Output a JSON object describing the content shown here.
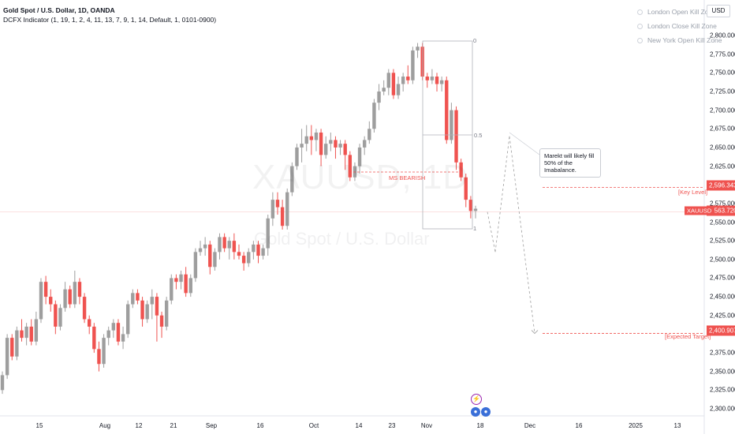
{
  "header": {
    "title": "Gold Spot / U.S. Dollar, 1D, OANDA",
    "indicator": "DCFX Indicator (1, 19, 1, 2, 4, 11, 13, 7, 9, 1, 14, Default, 1, 0101-0900)"
  },
  "currency_button": "USD",
  "kill_zones": [
    "London Open Kill Zone",
    "London Close Kill Zone",
    "New York Open Kill Zone"
  ],
  "watermark": {
    "symbol": "XAUUSD, 1D",
    "name": "Gold Spot / U.S. Dollar"
  },
  "annotations": {
    "note": "Marekt will likely fill 50% of the Imabalance.",
    "ms_bearish": "MS BEARISH",
    "key_level": "[Key Level]",
    "expected_target": "[Expected Target]",
    "fib_0": "0",
    "fib_05": "0.5",
    "fib_1": "1"
  },
  "price_tags": {
    "key_level": "2,596.343",
    "current": "2,563.720",
    "target": "2,400.907",
    "symbol": "XAUUSD"
  },
  "colors": {
    "up": "#9e9e9e",
    "down": "#ef5350",
    "accent": "#ef5350"
  },
  "chart_data": {
    "type": "candlestick",
    "y_ticks": [
      "2,800.000",
      "2,775.000",
      "2,750.000",
      "2,725.000",
      "2,700.000",
      "2,675.000",
      "2,650.000",
      "2,625.000",
      "2,600.000",
      "2,575.000",
      "2,550.000",
      "2,525.000",
      "2,500.000",
      "2,475.000",
      "2,450.000",
      "2,425.000",
      "2,375.000",
      "2,350.000",
      "2,325.000",
      "2,300.000"
    ],
    "x_ticks": [
      "15",
      "Aug",
      "12",
      "21",
      "Sep",
      "16",
      "Oct",
      "14",
      "23",
      "Nov",
      "18",
      "Dec",
      "16",
      "2025",
      "13"
    ],
    "ylim": [
      2290,
      2820
    ],
    "key_level": 2596.343,
    "current_price": 2563.72,
    "expected_target": 2400.907,
    "projection": [
      [
        2563.72,
        2510
      ],
      [
        2510,
        2665
      ],
      [
        2665,
        2400.907
      ]
    ],
    "candles": [
      [
        2325,
        2345,
        2320,
        2350
      ],
      [
        2345,
        2395,
        2340,
        2400
      ],
      [
        2395,
        2370,
        2365,
        2400
      ],
      [
        2370,
        2405,
        2365,
        2410
      ],
      [
        2405,
        2395,
        2390,
        2420
      ],
      [
        2395,
        2410,
        2385,
        2415
      ],
      [
        2410,
        2390,
        2385,
        2420
      ],
      [
        2390,
        2420,
        2385,
        2430
      ],
      [
        2420,
        2470,
        2415,
        2475
      ],
      [
        2470,
        2450,
        2440,
        2478
      ],
      [
        2450,
        2440,
        2430,
        2460
      ],
      [
        2440,
        2410,
        2400,
        2445
      ],
      [
        2410,
        2435,
        2405,
        2440
      ],
      [
        2435,
        2460,
        2430,
        2470
      ],
      [
        2460,
        2440,
        2435,
        2465
      ],
      [
        2440,
        2470,
        2435,
        2485
      ],
      [
        2470,
        2450,
        2440,
        2475
      ],
      [
        2450,
        2420,
        2415,
        2455
      ],
      [
        2420,
        2410,
        2400,
        2425
      ],
      [
        2410,
        2380,
        2375,
        2415
      ],
      [
        2380,
        2360,
        2350,
        2390
      ],
      [
        2360,
        2395,
        2355,
        2400
      ],
      [
        2395,
        2405,
        2385,
        2410
      ],
      [
        2405,
        2415,
        2395,
        2420
      ],
      [
        2415,
        2390,
        2385,
        2420
      ],
      [
        2390,
        2400,
        2380,
        2410
      ],
      [
        2400,
        2440,
        2395,
        2445
      ],
      [
        2440,
        2455,
        2435,
        2460
      ],
      [
        2455,
        2445,
        2440,
        2460
      ],
      [
        2445,
        2420,
        2410,
        2450
      ],
      [
        2420,
        2440,
        2415,
        2445
      ],
      [
        2440,
        2450,
        2420,
        2460
      ],
      [
        2450,
        2425,
        2390,
        2455
      ],
      [
        2425,
        2410,
        2395,
        2430
      ],
      [
        2410,
        2445,
        2405,
        2450
      ],
      [
        2445,
        2475,
        2440,
        2480
      ],
      [
        2475,
        2470,
        2460,
        2480
      ],
      [
        2470,
        2480,
        2460,
        2485
      ],
      [
        2480,
        2455,
        2450,
        2490
      ],
      [
        2455,
        2475,
        2450,
        2480
      ],
      [
        2475,
        2510,
        2470,
        2515
      ],
      [
        2510,
        2515,
        2505,
        2525
      ],
      [
        2515,
        2520,
        2505,
        2530
      ],
      [
        2520,
        2490,
        2480,
        2525
      ],
      [
        2490,
        2510,
        2485,
        2515
      ],
      [
        2510,
        2530,
        2500,
        2535
      ],
      [
        2530,
        2515,
        2510,
        2535
      ],
      [
        2515,
        2525,
        2500,
        2530
      ],
      [
        2525,
        2510,
        2500,
        2535
      ],
      [
        2510,
        2505,
        2500,
        2520
      ],
      [
        2505,
        2495,
        2485,
        2510
      ],
      [
        2495,
        2510,
        2490,
        2515
      ],
      [
        2510,
        2520,
        2500,
        2525
      ],
      [
        2520,
        2505,
        2495,
        2525
      ],
      [
        2505,
        2515,
        2500,
        2520
      ],
      [
        2515,
        2555,
        2505,
        2560
      ],
      [
        2555,
        2580,
        2545,
        2590
      ],
      [
        2580,
        2570,
        2560,
        2590
      ],
      [
        2570,
        2545,
        2540,
        2580
      ],
      [
        2545,
        2590,
        2540,
        2595
      ],
      [
        2590,
        2625,
        2585,
        2630
      ],
      [
        2625,
        2650,
        2620,
        2655
      ],
      [
        2650,
        2655,
        2630,
        2675
      ],
      [
        2655,
        2665,
        2645,
        2680
      ],
      [
        2665,
        2660,
        2640,
        2680
      ],
      [
        2660,
        2670,
        2645,
        2675
      ],
      [
        2670,
        2640,
        2625,
        2675
      ],
      [
        2640,
        2655,
        2635,
        2665
      ],
      [
        2655,
        2660,
        2645,
        2670
      ],
      [
        2660,
        2650,
        2635,
        2665
      ],
      [
        2650,
        2655,
        2640,
        2660
      ],
      [
        2655,
        2640,
        2620,
        2660
      ],
      [
        2640,
        2610,
        2605,
        2645
      ],
      [
        2610,
        2625,
        2605,
        2630
      ],
      [
        2625,
        2650,
        2615,
        2655
      ],
      [
        2650,
        2660,
        2640,
        2665
      ],
      [
        2660,
        2675,
        2655,
        2685
      ],
      [
        2675,
        2710,
        2670,
        2715
      ],
      [
        2710,
        2725,
        2700,
        2735
      ],
      [
        2725,
        2730,
        2720,
        2740
      ],
      [
        2730,
        2750,
        2720,
        2755
      ],
      [
        2750,
        2720,
        2715,
        2755
      ],
      [
        2720,
        2735,
        2715,
        2745
      ],
      [
        2735,
        2745,
        2725,
        2750
      ],
      [
        2745,
        2740,
        2735,
        2760
      ],
      [
        2740,
        2780,
        2735,
        2785
      ],
      [
        2780,
        2785,
        2770,
        2790
      ],
      [
        2785,
        2745,
        2740,
        2790
      ],
      [
        2745,
        2740,
        2730,
        2750
      ],
      [
        2740,
        2745,
        2735,
        2755
      ],
      [
        2745,
        2735,
        2725,
        2750
      ],
      [
        2735,
        2740,
        2725,
        2745
      ],
      [
        2740,
        2660,
        2655,
        2745
      ],
      [
        2660,
        2700,
        2655,
        2710
      ],
      [
        2700,
        2630,
        2620,
        2705
      ],
      [
        2630,
        2610,
        2605,
        2635
      ],
      [
        2610,
        2580,
        2570,
        2615
      ],
      [
        2580,
        2565,
        2555,
        2585
      ],
      [
        2565,
        2568,
        2555,
        2572
      ]
    ]
  }
}
